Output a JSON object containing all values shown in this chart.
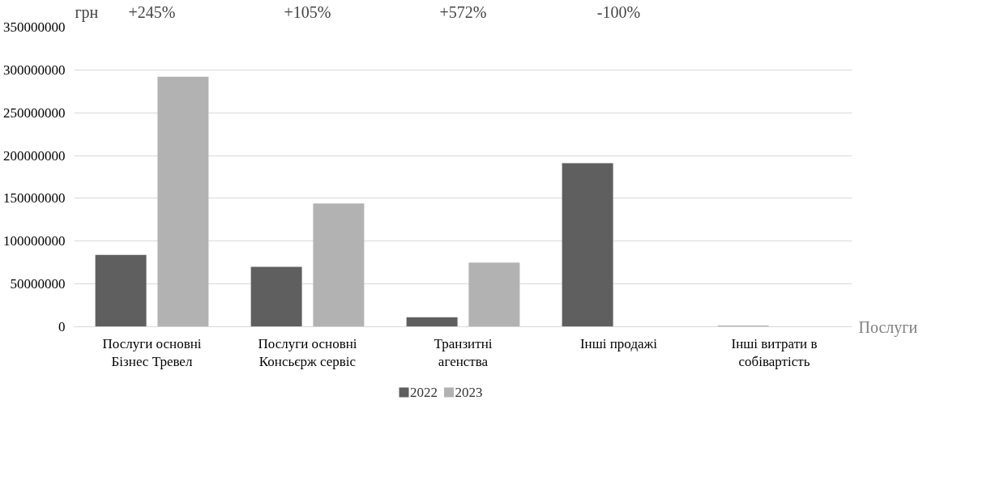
{
  "chart_data": {
    "type": "bar",
    "xlabel": "Послуги",
    "ylabel": "грн",
    "categories": [
      "Послуги основні Бізнес Тревел",
      "Послуги основні Консьєрж сервіс",
      "Транзитні агенства",
      "Інші продажі",
      "Інші витрати в собівартість"
    ],
    "series": [
      {
        "name": "2022",
        "color": "#5f5f5f",
        "values": [
          84000000,
          70000000,
          11000000,
          191000000,
          1000000
        ]
      },
      {
        "name": "2023",
        "color": "#b2b2b2",
        "values": [
          292000000,
          144000000,
          75000000,
          0,
          0
        ]
      }
    ],
    "ylim": [
      0,
      350000000
    ],
    "yticks": [
      0,
      50000000,
      100000000,
      150000000,
      200000000,
      250000000,
      300000000,
      350000000
    ],
    "grid": "y",
    "legend": "bottom",
    "annotations": [
      "+245%",
      "+105%",
      "+572%",
      "-100%"
    ]
  }
}
